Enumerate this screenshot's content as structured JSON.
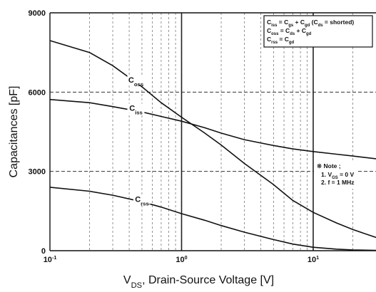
{
  "chart_data": {
    "type": "line",
    "x_scale": "log",
    "xlim": [
      0.1,
      30
    ],
    "ylim": [
      0,
      9000
    ],
    "xlabel": "V_DS, Drain-Source Voltage [V]",
    "ylabel": "Capacitances [pF]",
    "x_ticks": [
      {
        "value": 0.1,
        "base": "10",
        "exp": "-1"
      },
      {
        "value": 1,
        "base": "10",
        "exp": "0"
      },
      {
        "value": 10,
        "base": "10",
        "exp": "1"
      }
    ],
    "y_ticks": [
      {
        "value": 0,
        "label": "0"
      },
      {
        "value": 3000,
        "label": "3000"
      },
      {
        "value": 6000,
        "label": "6000"
      },
      {
        "value": 9000,
        "label": "9000"
      }
    ],
    "grid": true,
    "series": [
      {
        "name": "C_iss",
        "x": [
          0.1,
          0.2,
          0.3,
          0.5,
          0.7,
          1,
          1.5,
          2,
          3,
          5,
          7,
          10,
          15,
          20,
          30
        ],
        "y": [
          5720,
          5600,
          5450,
          5250,
          5080,
          4900,
          4650,
          4450,
          4200,
          3980,
          3850,
          3750,
          3650,
          3580,
          3480
        ]
      },
      {
        "name": "C_oss",
        "x": [
          0.1,
          0.2,
          0.3,
          0.5,
          0.7,
          1,
          1.5,
          2,
          3,
          5,
          7,
          10,
          15,
          20,
          30
        ],
        "y": [
          7950,
          7500,
          7000,
          6200,
          5600,
          5050,
          4450,
          4000,
          3300,
          2500,
          1900,
          1450,
          1050,
          800,
          500
        ]
      },
      {
        "name": "C_rss",
        "x": [
          0.1,
          0.2,
          0.3,
          0.5,
          0.7,
          1,
          1.5,
          2,
          3,
          5,
          7,
          10,
          15,
          20,
          30
        ],
        "y": [
          2400,
          2250,
          2100,
          1850,
          1650,
          1400,
          1150,
          950,
          700,
          420,
          250,
          130,
          60,
          30,
          10
        ]
      }
    ],
    "curve_labels": [
      {
        "series": "C_oss",
        "base": "C",
        "sub": "oss"
      },
      {
        "series": "C_iss",
        "base": "C",
        "sub": "iss"
      },
      {
        "series": "C_rss",
        "base": "C",
        "sub": "rss"
      }
    ],
    "legend_position": "top-right",
    "legend": [
      {
        "text": "C_iss = C_gs + C_gd (C_ds = shorted)"
      },
      {
        "text": "C_oss = C_ds + C_gd"
      },
      {
        "text": "C_rss = C_gd"
      }
    ],
    "note": {
      "title": "※ Note ;",
      "items": [
        "1. V_GS = 0 V",
        "2. f = 1 MHz"
      ]
    }
  }
}
